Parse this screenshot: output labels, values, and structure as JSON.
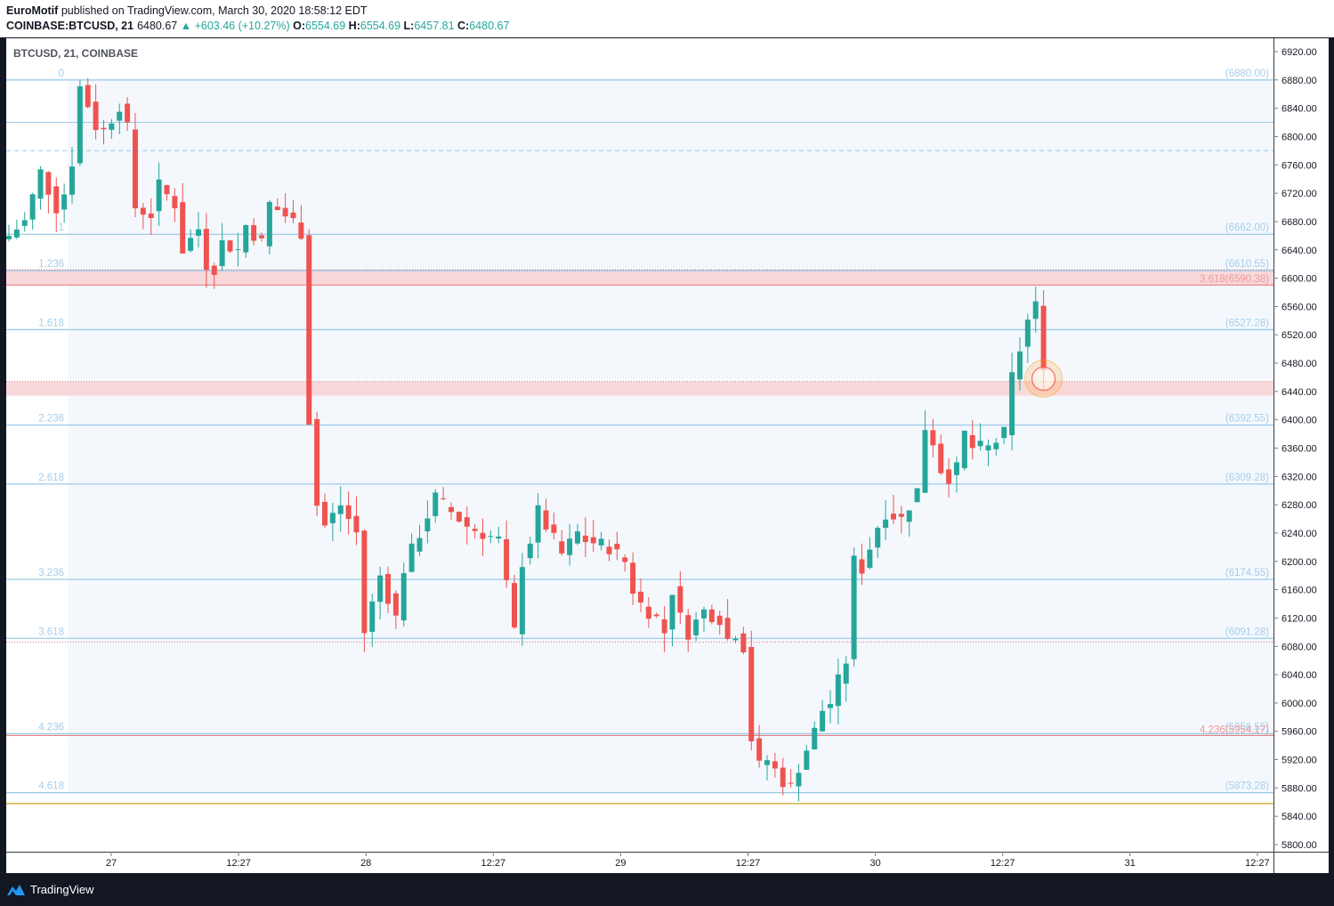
{
  "header": {
    "author": "EuroMotif",
    "published_text": "published on TradingView.com, March 30, 2020 18:58:12 EDT",
    "symbol": "COINBASE:BTCUSD, 21",
    "last": "6480.67",
    "change": "▲ +603.46 (+10.27%)",
    "o_label": "O:",
    "o_value": "6554.69",
    "h_label": "H:",
    "h_value": "6554.69",
    "l_label": "L:",
    "l_value": "6457.81",
    "c_label": "C:",
    "c_value": "6480.67"
  },
  "footer": {
    "brand": "TradingView"
  },
  "colors": {
    "up": "#26a69a",
    "down": "#ef5350",
    "fib_line": "#9ccbe8",
    "fib_label": "#a6cdea",
    "red_zone": "#f9d8dc",
    "red_line": "#e57373",
    "fill": "#f4f8fd"
  },
  "chart_data": {
    "type": "candlestick",
    "title": "BTCUSD, 21, COINBASE",
    "ylim": [
      5780,
      6940
    ],
    "y_ticks": [
      "6920.00",
      "6880.00",
      "6840.00",
      "6800.00",
      "6760.00",
      "6720.00",
      "6680.00",
      "6640.00",
      "6600.00",
      "6560.00",
      "6520.00",
      "6480.00",
      "6440.00",
      "6400.00",
      "6360.00",
      "6320.00",
      "6280.00",
      "6240.00",
      "6200.00",
      "6160.00",
      "6120.00",
      "6080.00",
      "6040.00",
      "6000.00",
      "5960.00",
      "5920.00",
      "5880.00",
      "5840.00",
      "5800.00"
    ],
    "x_ticks": [
      "27",
      "12:27",
      "28",
      "12:27",
      "29",
      "12:27",
      "30",
      "12:27",
      "31",
      "12:27"
    ],
    "fib_levels": [
      {
        "ratio": "0",
        "price": 6880.0,
        "price_label": "(6880.00)"
      },
      {
        "ratio": "1",
        "price": 6662.0,
        "price_label": "(6662.00)"
      },
      {
        "ratio": "1.236",
        "price": 6610.55,
        "price_label": "(6610.55)"
      },
      {
        "ratio": "1.618",
        "price": 6527.28,
        "price_label": "(6527.28)"
      },
      {
        "ratio": "2.236",
        "price": 6392.55,
        "price_label": "(6392.55)"
      },
      {
        "ratio": "2.618",
        "price": 6309.28,
        "price_label": "(6309.28)"
      },
      {
        "ratio": "3.236",
        "price": 6174.55,
        "price_label": "(6174.55)"
      },
      {
        "ratio": "3.618",
        "price": 6091.28,
        "price_label": "(6091.28)"
      },
      {
        "ratio": "4.236",
        "price": 5956.55,
        "price_label": "(5956.55)"
      },
      {
        "ratio": "4.618",
        "price": 5873.28,
        "price_label": "(5873.28)"
      }
    ],
    "fib2_levels": [
      {
        "ratio": "3.618",
        "price": 6590.38,
        "price_label": "(6590.38)"
      },
      {
        "ratio": "4.236",
        "price": 5954.17,
        "price_label": "(5954.17)"
      }
    ],
    "extra_lines": [
      {
        "price": 6820,
        "style": "solid"
      },
      {
        "price": 6780,
        "style": "dashed"
      },
      {
        "price": 6086,
        "style": "dotted-red"
      },
      {
        "price": 5858,
        "style": "gold"
      }
    ],
    "zones": [
      {
        "from": 6590,
        "to": 6612
      },
      {
        "from": 6434,
        "to": 6454
      }
    ],
    "marker": {
      "price": 6458,
      "at": "last candle"
    },
    "close_path": [
      [
        0,
        6660
      ],
      [
        2,
        6680
      ],
      [
        4,
        6750
      ],
      [
        6,
        6700
      ],
      [
        7,
        6720
      ],
      [
        8,
        6765
      ],
      [
        9,
        6870
      ],
      [
        10,
        6845
      ],
      [
        11,
        6815
      ],
      [
        12,
        6808
      ],
      [
        14,
        6845
      ],
      [
        15,
        6810
      ],
      [
        16,
        6700
      ],
      [
        18,
        6690
      ],
      [
        19,
        6730
      ],
      [
        21,
        6705
      ],
      [
        22,
        6640
      ],
      [
        24,
        6670
      ],
      [
        25,
        6620
      ],
      [
        26,
        6615
      ],
      [
        27,
        6650
      ],
      [
        29,
        6640
      ],
      [
        30,
        6675
      ],
      [
        32,
        6650
      ],
      [
        33,
        6705
      ],
      [
        36,
        6680
      ],
      [
        37,
        6665
      ],
      [
        38,
        6400
      ],
      [
        39,
        6280
      ],
      [
        40,
        6250
      ],
      [
        42,
        6280
      ],
      [
        44,
        6240
      ],
      [
        45,
        6100
      ],
      [
        46,
        6140
      ],
      [
        47,
        6180
      ],
      [
        49,
        6120
      ],
      [
        50,
        6190
      ],
      [
        52,
        6240
      ],
      [
        54,
        6290
      ],
      [
        56,
        6270
      ],
      [
        58,
        6250
      ],
      [
        60,
        6240
      ],
      [
        62,
        6230
      ],
      [
        64,
        6100
      ],
      [
        65,
        6200
      ],
      [
        66,
        6230
      ],
      [
        67,
        6270
      ],
      [
        68,
        6250
      ],
      [
        70,
        6210
      ],
      [
        72,
        6240
      ],
      [
        73,
        6230
      ],
      [
        76,
        6220
      ],
      [
        78,
        6200
      ],
      [
        79,
        6160
      ],
      [
        80,
        6140
      ],
      [
        82,
        6120
      ],
      [
        83,
        6100
      ],
      [
        84,
        6160
      ],
      [
        85,
        6120
      ],
      [
        86,
        6100
      ],
      [
        88,
        6130
      ],
      [
        90,
        6120
      ],
      [
        91,
        6090
      ],
      [
        92,
        6100
      ],
      [
        93,
        6080
      ],
      [
        94,
        5950
      ],
      [
        95,
        5910
      ],
      [
        96,
        5920
      ],
      [
        98,
        5890
      ],
      [
        99,
        5880
      ],
      [
        100,
        5910
      ],
      [
        102,
        5960
      ],
      [
        103,
        5990
      ],
      [
        104,
        6000
      ],
      [
        105,
        6030
      ],
      [
        106,
        6060
      ],
      [
        107,
        6200
      ],
      [
        108,
        6190
      ],
      [
        110,
        6250
      ],
      [
        111,
        6270
      ],
      [
        113,
        6260
      ],
      [
        115,
        6300
      ],
      [
        116,
        6390
      ],
      [
        117,
        6370
      ],
      [
        118,
        6330
      ],
      [
        119,
        6320
      ],
      [
        120,
        6330
      ],
      [
        121,
        6380
      ],
      [
        122,
        6360
      ],
      [
        124,
        6360
      ],
      [
        126,
        6380
      ],
      [
        127,
        6460
      ],
      [
        128,
        6500
      ],
      [
        129,
        6540
      ],
      [
        130,
        6560
      ],
      [
        131,
        6480
      ]
    ]
  }
}
